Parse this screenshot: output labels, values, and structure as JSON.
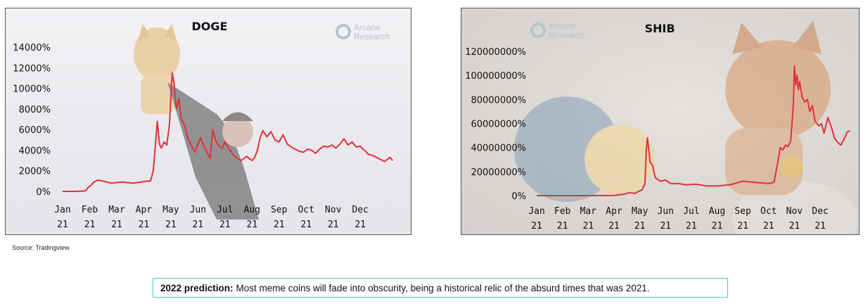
{
  "colors": {
    "line": "#e0313a",
    "frame": "#555555",
    "prediction_border": "#49c9d1",
    "watermark": "#b7c5cc"
  },
  "watermark": {
    "line1": "Arcane",
    "line2": "Research",
    "icon": "arcane-research-logo-icon"
  },
  "source": "Source: Tradingview",
  "prediction": {
    "label": "2022 prediction:",
    "text": "Most meme coins will fade into obscurity, being a historical relic of the absurd times that was 2021."
  },
  "chart_data": [
    {
      "type": "line",
      "title": "DOGE",
      "xlabel": "",
      "ylabel": "",
      "y_unit": "%",
      "ylim": [
        0,
        14000
      ],
      "yticks": [
        0,
        2000,
        4000,
        6000,
        8000,
        10000,
        12000,
        14000
      ],
      "ytick_labels": [
        "0%",
        "2000%",
        "4000%",
        "6000%",
        "8000%",
        "10000%",
        "12000%",
        "14000%"
      ],
      "xlim": [
        0,
        12.4
      ],
      "xtick_labels": [
        "Jan 21",
        "Feb 21",
        "Mar 21",
        "Apr 21",
        "May 21",
        "Jun 21",
        "Jul 21",
        "Aug 21",
        "Sep 21",
        "Oct 21",
        "Nov 21",
        "Dec 21"
      ],
      "grid": false,
      "series": [
        {
          "x": [
            0,
            0.5,
            0.85,
            0.95,
            1.05,
            1.15,
            1.3,
            1.5,
            1.8,
            2.2,
            2.6,
            2.9,
            3.1,
            3.25,
            3.35,
            3.42,
            3.5,
            3.58,
            3.65,
            3.75,
            3.85,
            3.95,
            4.05,
            4.12,
            4.2,
            4.3,
            4.38,
            4.5,
            4.62,
            4.75,
            4.9,
            5.0,
            5.1,
            5.2,
            5.3,
            5.45,
            5.55,
            5.65,
            5.75,
            5.9,
            6.0,
            6.15,
            6.3,
            6.45,
            6.6,
            6.8,
            7.0,
            7.1,
            7.2,
            7.3,
            7.4,
            7.55,
            7.7,
            7.85,
            8.0,
            8.15,
            8.3,
            8.45,
            8.6,
            8.75,
            8.9,
            9.05,
            9.2,
            9.35,
            9.5,
            9.65,
            9.8,
            9.95,
            10.1,
            10.25,
            10.4,
            10.55,
            10.7,
            10.85,
            11.0,
            11.1,
            11.2,
            11.3,
            11.45,
            11.6,
            11.75,
            11.9,
            12.0,
            12.1,
            12.2
          ],
          "y": [
            0,
            0,
            50,
            400,
            600,
            900,
            1100,
            1000,
            800,
            900,
            800,
            900,
            1000,
            1000,
            2000,
            4200,
            6800,
            4600,
            4200,
            4800,
            4500,
            6500,
            11500,
            10500,
            8000,
            9000,
            7000,
            6500,
            5200,
            4500,
            3800,
            4600,
            5200,
            4500,
            4000,
            3200,
            6000,
            5000,
            4500,
            4200,
            4800,
            4100,
            3600,
            3200,
            3000,
            3400,
            3000,
            3300,
            4000,
            5200,
            5900,
            5300,
            5800,
            5000,
            4800,
            5500,
            4600,
            4300,
            4100,
            3900,
            3800,
            4100,
            4000,
            3700,
            4100,
            4400,
            4300,
            4500,
            4200,
            4600,
            5100,
            4500,
            4800,
            4300,
            4400,
            4100,
            3900,
            3600,
            3500,
            3300,
            3100,
            2900,
            3100,
            3300,
            3000
          ]
        }
      ]
    },
    {
      "type": "line",
      "title": "SHIB",
      "xlabel": "",
      "ylabel": "",
      "y_unit": "%",
      "ylim": [
        0,
        120000000
      ],
      "yticks": [
        0,
        20000000,
        40000000,
        60000000,
        80000000,
        100000000,
        120000000
      ],
      "ytick_labels": [
        "0%",
        "20000000%",
        "40000000%",
        "60000000%",
        "80000000%",
        "100000000%",
        "120000000%"
      ],
      "xlim": [
        0,
        12.2
      ],
      "xtick_labels": [
        "Jan 21",
        "Feb 21",
        "Mar 21",
        "Apr 21",
        "May 21",
        "Jun 21",
        "Jul 21",
        "Aug 21",
        "Sep 21",
        "Oct 21",
        "Nov 21",
        "Dec 21"
      ],
      "grid": false,
      "series": [
        {
          "x": [
            0,
            1,
            2,
            3,
            3.4,
            3.6,
            3.8,
            4.0,
            4.1,
            4.2,
            4.25,
            4.3,
            4.4,
            4.5,
            4.6,
            4.8,
            5.0,
            5.2,
            5.5,
            5.8,
            6.2,
            6.6,
            7.0,
            7.5,
            8.0,
            8.5,
            9.0,
            9.2,
            9.25,
            9.35,
            9.45,
            9.55,
            9.65,
            9.75,
            9.85,
            9.95,
            10.0,
            10.05,
            10.1,
            10.15,
            10.2,
            10.3,
            10.4,
            10.5,
            10.6,
            10.7,
            10.8,
            10.95,
            11.05,
            11.15,
            11.3,
            11.45,
            11.55,
            11.65,
            11.8,
            11.95,
            12.05,
            12.15
          ],
          "y": [
            0,
            0,
            0,
            100000,
            1200000,
            2500000,
            1800000,
            4000000,
            5000000,
            10000000,
            38000000,
            48000000,
            28000000,
            25000000,
            15000000,
            12000000,
            13000000,
            10000000,
            10000000,
            9000000,
            9500000,
            8000000,
            8000000,
            9000000,
            12000000,
            11000000,
            10000000,
            11000000,
            16000000,
            27000000,
            40000000,
            38000000,
            42000000,
            41000000,
            45000000,
            72000000,
            108000000,
            92000000,
            100000000,
            88000000,
            95000000,
            82000000,
            78000000,
            80000000,
            70000000,
            75000000,
            62000000,
            58000000,
            60000000,
            52000000,
            65000000,
            56000000,
            48000000,
            45000000,
            42000000,
            48000000,
            53000000,
            54000000
          ]
        }
      ]
    }
  ]
}
